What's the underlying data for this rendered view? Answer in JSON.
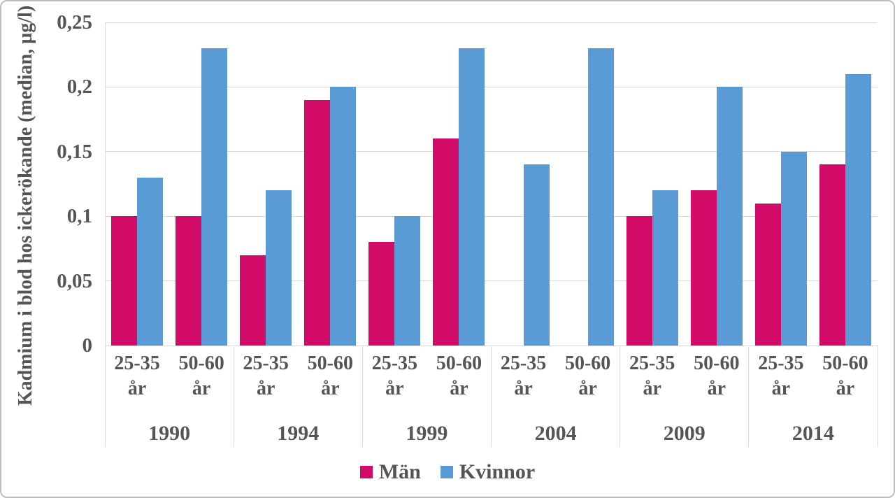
{
  "text_color": "#555555",
  "gridline_color": "#d9d9d9",
  "frame_border_color": "#bdbdbd",
  "chart_data": {
    "type": "bar",
    "title": "",
    "ylabel": "Kadmium i blod hos ickerökande (median, µg/l)",
    "xlabel": "",
    "ylim": [
      0,
      0.25
    ],
    "ytick_labels": [
      "0",
      "0,05",
      "0,1",
      "0,15",
      "0,2",
      "0,25"
    ],
    "grid": true,
    "legend_position": "bottom",
    "years": [
      "1990",
      "1994",
      "1999",
      "2004",
      "2009",
      "2014"
    ],
    "age_groups": [
      "25-35 år",
      "50-60 år"
    ],
    "series": [
      {
        "name": "Män",
        "color": "#d20b69",
        "values": [
          [
            0.1,
            0.1
          ],
          [
            0.07,
            0.19
          ],
          [
            0.08,
            0.16
          ],
          [
            null,
            null
          ],
          [
            0.1,
            0.12
          ],
          [
            0.11,
            0.14
          ]
        ]
      },
      {
        "name": "Kvinnor",
        "color": "#5b9bd5",
        "values": [
          [
            0.13,
            0.23
          ],
          [
            0.12,
            0.2
          ],
          [
            0.1,
            0.23
          ],
          [
            0.14,
            0.23
          ],
          [
            0.12,
            0.2
          ],
          [
            0.15,
            0.21
          ]
        ]
      }
    ]
  }
}
